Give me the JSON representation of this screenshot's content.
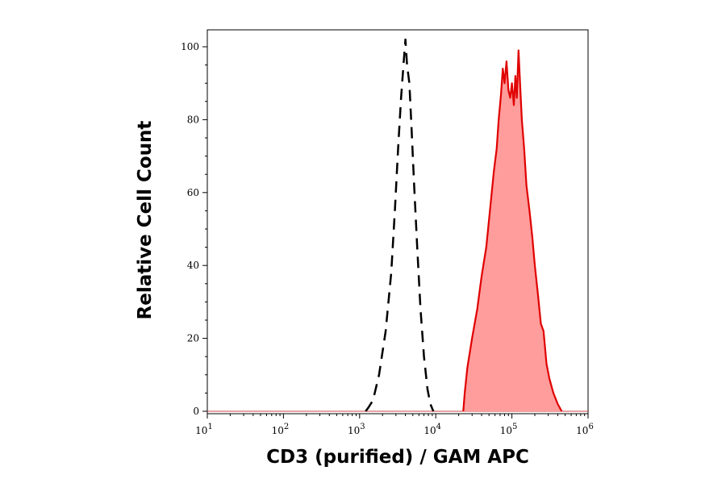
{
  "chart_data": {
    "type": "area",
    "title": "",
    "xlabel": "CD3 (purified) / GAM APC",
    "ylabel": "Relative Cell Count",
    "x_scale": "log",
    "xlim": [
      10,
      1000000
    ],
    "ylim": [
      0,
      104
    ],
    "grid": false,
    "legend": "none",
    "x_ticks": [
      {
        "value": 10,
        "base": "10",
        "exp": "1"
      },
      {
        "value": 100,
        "base": "10",
        "exp": "2"
      },
      {
        "value": 1000,
        "base": "10",
        "exp": "3"
      },
      {
        "value": 10000,
        "base": "10",
        "exp": "4"
      },
      {
        "value": 100000,
        "base": "10",
        "exp": "5"
      },
      {
        "value": 1000000,
        "base": "10",
        "exp": "6"
      }
    ],
    "y_ticks": [
      {
        "value": 0,
        "label": "0"
      },
      {
        "value": 20,
        "label": "20"
      },
      {
        "value": 40,
        "label": "40"
      },
      {
        "value": 60,
        "label": "60"
      },
      {
        "value": 80,
        "label": "80"
      },
      {
        "value": 100,
        "label": "100"
      }
    ],
    "series": [
      {
        "style": "dashed",
        "color": "#000000",
        "fill": "none",
        "points": [
          [
            1200,
            0
          ],
          [
            1300,
            1
          ],
          [
            1500,
            3
          ],
          [
            1800,
            10
          ],
          [
            2200,
            22
          ],
          [
            2600,
            38
          ],
          [
            2900,
            55
          ],
          [
            3200,
            72
          ],
          [
            3500,
            86
          ],
          [
            3800,
            96
          ],
          [
            4000,
            102
          ],
          [
            4200,
            95
          ],
          [
            4500,
            90
          ],
          [
            4800,
            78
          ],
          [
            5200,
            62
          ],
          [
            5700,
            45
          ],
          [
            6300,
            28
          ],
          [
            7000,
            15
          ],
          [
            7800,
            6
          ],
          [
            8500,
            2
          ],
          [
            9300,
            0
          ]
        ]
      },
      {
        "style": "solid",
        "color": "#e00000",
        "fill": "#ff9c9c",
        "points": [
          [
            23000,
            0
          ],
          [
            24000,
            5
          ],
          [
            26000,
            12
          ],
          [
            30000,
            20
          ],
          [
            35000,
            28
          ],
          [
            40000,
            37
          ],
          [
            46000,
            45
          ],
          [
            52000,
            56
          ],
          [
            58000,
            66
          ],
          [
            63000,
            72
          ],
          [
            67000,
            80
          ],
          [
            72000,
            87
          ],
          [
            76000,
            94
          ],
          [
            80000,
            90
          ],
          [
            85000,
            96
          ],
          [
            90000,
            88
          ],
          [
            95000,
            86
          ],
          [
            100000,
            90
          ],
          [
            106000,
            84
          ],
          [
            111000,
            92
          ],
          [
            116000,
            86
          ],
          [
            122000,
            99
          ],
          [
            128000,
            90
          ],
          [
            135000,
            80
          ],
          [
            145000,
            72
          ],
          [
            155000,
            62
          ],
          [
            170000,
            55
          ],
          [
            185000,
            48
          ],
          [
            200000,
            40
          ],
          [
            220000,
            32
          ],
          [
            240000,
            24
          ],
          [
            260000,
            22
          ],
          [
            285000,
            13
          ],
          [
            310000,
            9
          ],
          [
            350000,
            5
          ],
          [
            400000,
            2
          ],
          [
            450000,
            0
          ]
        ]
      }
    ]
  }
}
